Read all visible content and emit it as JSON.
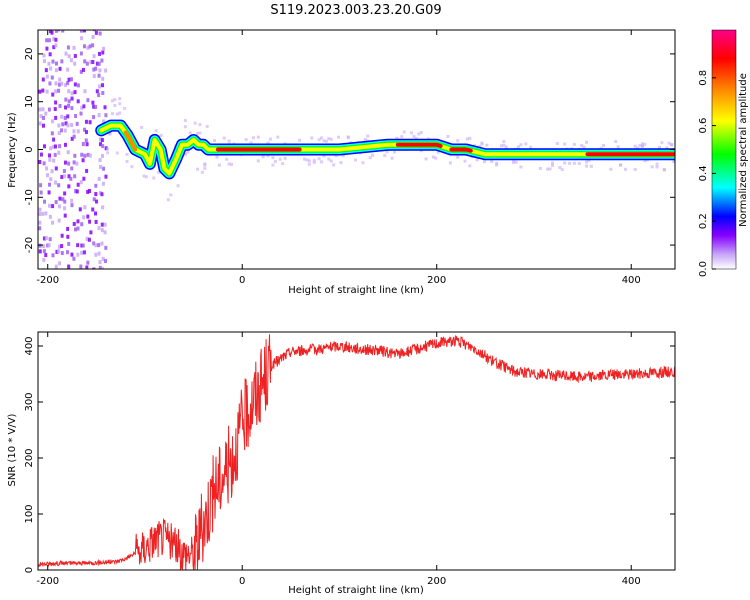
{
  "title": "S119.2023.003.23.20.G09",
  "chart_data": [
    {
      "type": "heatmap",
      "xlabel": "Height of straight line (km)",
      "ylabel": "Frequency (Hz)",
      "xlim": [
        -210,
        445
      ],
      "ylim": [
        -25,
        25
      ],
      "xticks": [
        -200,
        0,
        200,
        400
      ],
      "yticks": [
        -20,
        -10,
        0,
        10,
        20
      ],
      "ridge": {
        "x": [
          -145,
          -135,
          -125,
          -118,
          -110,
          -100,
          -95,
          -90,
          -84,
          -80,
          -75,
          -68,
          -62,
          -56,
          -50,
          -45,
          -40,
          -35,
          -30,
          0,
          50,
          100,
          150,
          200,
          215,
          230,
          250,
          300,
          350,
          400,
          445
        ],
        "freq": [
          4,
          5,
          5,
          3,
          0,
          -1,
          -3,
          2,
          0,
          -4,
          -5,
          -2,
          1,
          1,
          2,
          1,
          1,
          0,
          0,
          0,
          0,
          0,
          1,
          1,
          0,
          0,
          -1,
          -1,
          -1,
          -1,
          -1
        ]
      },
      "colorbar": {
        "label": "Normalized spectral amplitude",
        "ticks": [
          "0.0",
          "0.2",
          "0.4",
          "0.6",
          "0.8"
        ],
        "range": [
          0,
          1
        ],
        "colors": [
          "#ffffff",
          "#c8a8f8",
          "#8800ff",
          "#0000ff",
          "#00ffff",
          "#00ff00",
          "#ffff00",
          "#ff8800",
          "#ff0000",
          "#ff0088"
        ]
      }
    },
    {
      "type": "line",
      "xlabel": "Height of straight line (km)",
      "ylabel": "SNR (10 * V/V)",
      "xlim": [
        -210,
        445
      ],
      "ylim": [
        0,
        425
      ],
      "xticks": [
        -200,
        0,
        200,
        400
      ],
      "yticks": [
        0,
        100,
        200,
        300,
        400
      ],
      "color": "#ee2222",
      "series": [
        {
          "x": [
            -210,
            -190,
            -170,
            -150,
            -130,
            -120,
            -110,
            -100,
            -90,
            -80,
            -70,
            -60,
            -50,
            -40,
            -30,
            -20,
            -10,
            0,
            10,
            20,
            30,
            50,
            80,
            100,
            120,
            140,
            160,
            180,
            200,
            220,
            240,
            260,
            280,
            300,
            350,
            400,
            445
          ],
          "values": [
            10,
            12,
            12,
            13,
            15,
            20,
            30,
            40,
            55,
            60,
            45,
            30,
            30,
            80,
            140,
            170,
            200,
            260,
            300,
            330,
            365,
            390,
            395,
            400,
            395,
            392,
            385,
            395,
            405,
            410,
            395,
            370,
            355,
            350,
            345,
            350,
            355
          ]
        }
      ]
    }
  ]
}
